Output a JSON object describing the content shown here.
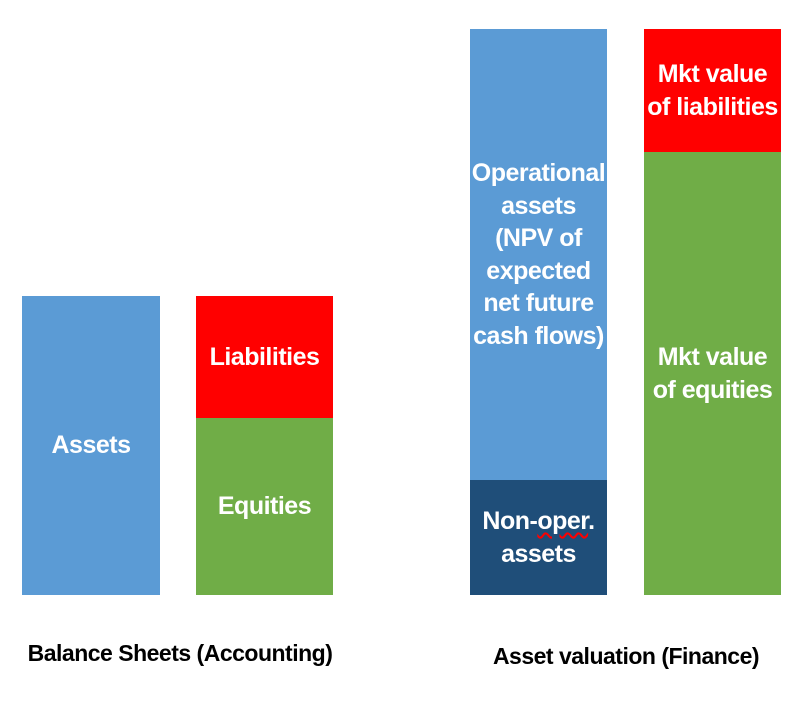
{
  "accounting": {
    "caption": "Balance Sheets (Accounting)",
    "assets": "Assets",
    "liabilities": "Liabilities",
    "equities": "Equities"
  },
  "finance": {
    "caption": "Asset valuation (Finance)",
    "operational_assets": "Operational\nassets\n(NPV of\nexpected\nnet future\ncash flows)",
    "non_oper_prefix": "Non-",
    "non_oper_word": "oper",
    "non_oper_suffix": ".\nassets",
    "mkt_liabilities": "Mkt value\nof liabilities",
    "mkt_equities": "Mkt value\nof equities"
  },
  "colors": {
    "assets": "#5b9bd5",
    "liabilities": "#ff0000",
    "equities": "#70ad47",
    "non_operational_assets": "#1f4e79"
  }
}
